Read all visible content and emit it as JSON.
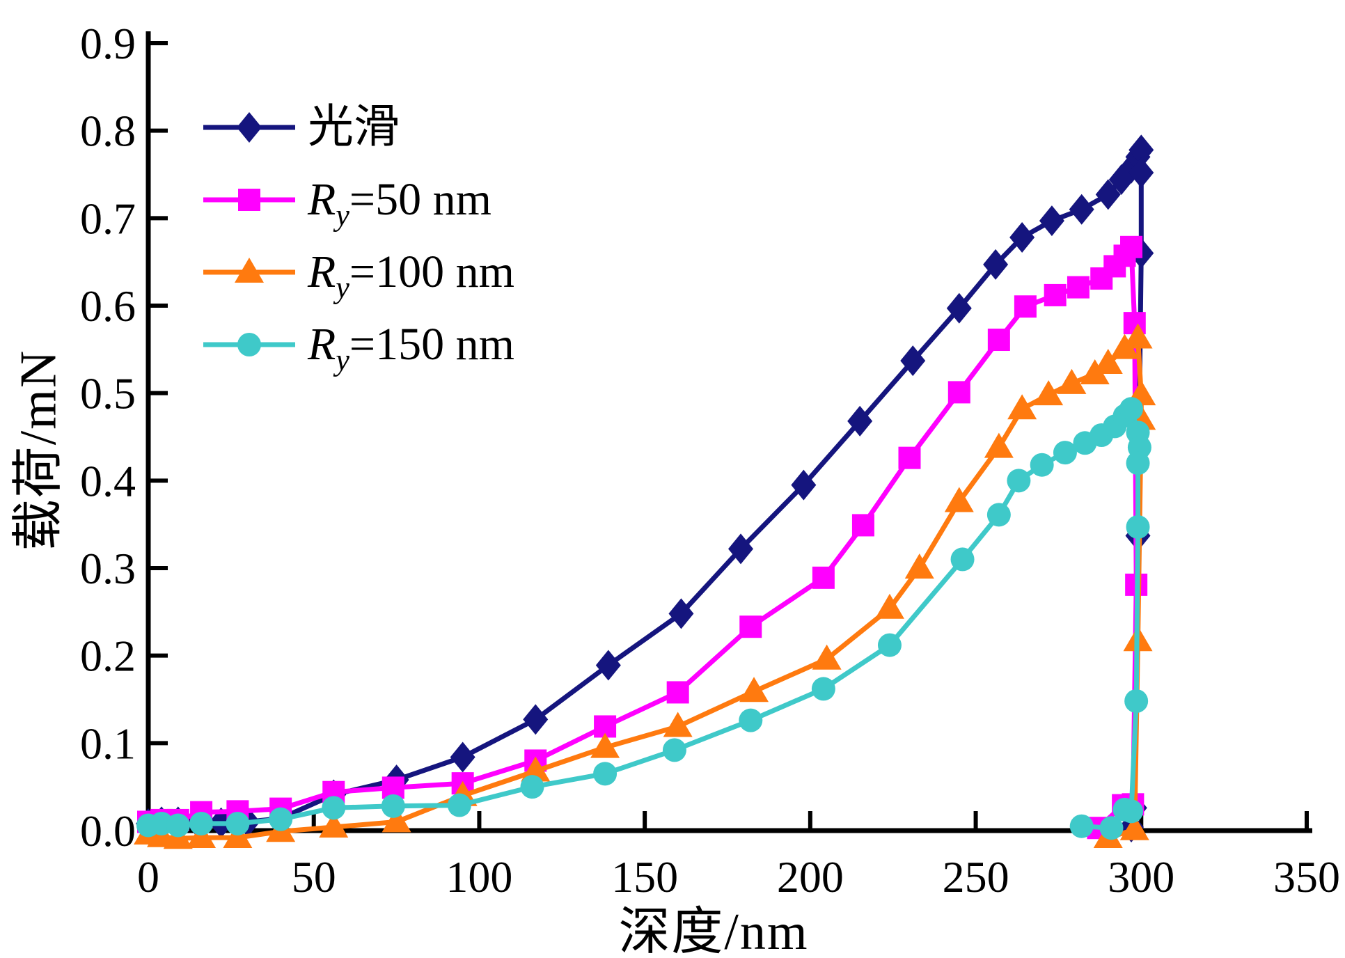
{
  "chart_data": {
    "type": "line",
    "title": "",
    "xlabel": "深度/nm",
    "ylabel": "载荷/mN",
    "xlim": [
      0,
      350
    ],
    "ylim": [
      0,
      0.9
    ],
    "xticks": [
      0,
      50,
      100,
      150,
      200,
      250,
      300,
      350
    ],
    "yticks": [
      0.0,
      0.1,
      0.2,
      0.3,
      0.4,
      0.5,
      0.6,
      0.7,
      0.8,
      0.9
    ],
    "grid": false,
    "legend_position": "upper-left",
    "axis_color": "#000000",
    "background": "#ffffff",
    "series": [
      {
        "name": "光滑",
        "label_pre": "光滑",
        "label_sub": "",
        "label_post": "",
        "label_pre_italic": false,
        "color": "#15157E",
        "marker": "diamond",
        "points": [
          [
            0,
            0.008
          ],
          [
            4,
            0.01
          ],
          [
            9,
            0.01
          ],
          [
            15,
            0.009
          ],
          [
            22,
            0.009
          ],
          [
            30,
            0.01
          ],
          [
            40,
            0.014
          ],
          [
            56,
            0.041
          ],
          [
            75,
            0.058
          ],
          [
            95,
            0.084
          ],
          [
            117,
            0.127
          ],
          [
            139,
            0.189
          ],
          [
            161,
            0.248
          ],
          [
            179,
            0.322
          ],
          [
            198,
            0.395
          ],
          [
            215,
            0.468
          ],
          [
            231,
            0.537
          ],
          [
            245,
            0.597
          ],
          [
            256,
            0.647
          ],
          [
            264,
            0.678
          ],
          [
            273,
            0.697
          ],
          [
            282,
            0.71
          ],
          [
            290,
            0.727
          ],
          [
            294,
            0.744
          ],
          [
            297,
            0.757
          ],
          [
            299,
            0.77
          ],
          [
            300,
            0.778
          ],
          [
            300,
            0.752
          ],
          [
            300,
            0.66
          ],
          [
            299,
            0.337
          ],
          [
            298,
            0.026
          ],
          [
            297,
            0.004
          ]
        ]
      },
      {
        "name": "Ry=50 nm",
        "label_pre": "R",
        "label_sub": "y",
        "label_post": "=50 nm",
        "label_pre_italic": true,
        "color": "#FF00FF",
        "marker": "square",
        "points": [
          [
            0,
            0.01
          ],
          [
            4,
            0.012
          ],
          [
            9,
            0.012
          ],
          [
            16,
            0.021
          ],
          [
            27,
            0.022
          ],
          [
            40,
            0.025
          ],
          [
            56,
            0.044
          ],
          [
            74,
            0.049
          ],
          [
            95,
            0.054
          ],
          [
            117,
            0.08
          ],
          [
            138,
            0.119
          ],
          [
            160,
            0.158
          ],
          [
            182,
            0.233
          ],
          [
            204,
            0.289
          ],
          [
            216,
            0.349
          ],
          [
            230,
            0.426
          ],
          [
            245,
            0.501
          ],
          [
            257,
            0.561
          ],
          [
            265,
            0.599
          ],
          [
            274,
            0.612
          ],
          [
            281,
            0.621
          ],
          [
            288,
            0.631
          ],
          [
            292,
            0.645
          ],
          [
            295,
            0.657
          ],
          [
            297,
            0.667
          ],
          [
            298,
            0.58
          ],
          [
            298.5,
            0.281
          ],
          [
            297.5,
            0.03
          ],
          [
            294.5,
            0.029
          ],
          [
            287,
            0.003
          ]
        ]
      },
      {
        "name": "Ry=100 nm",
        "label_pre": "R",
        "label_sub": "y",
        "label_post": "=100 nm",
        "label_pre_italic": true,
        "color": "#FF7A0F",
        "marker": "triangle",
        "points": [
          [
            0,
            -0.004
          ],
          [
            4,
            -0.007
          ],
          [
            9,
            -0.009
          ],
          [
            16,
            -0.008
          ],
          [
            27,
            -0.008
          ],
          [
            40,
            -0.001
          ],
          [
            56,
            0.004
          ],
          [
            75,
            0.01
          ],
          [
            95,
            0.04
          ],
          [
            117,
            0.068
          ],
          [
            138,
            0.095
          ],
          [
            160,
            0.119
          ],
          [
            183,
            0.159
          ],
          [
            205,
            0.196
          ],
          [
            224,
            0.254
          ],
          [
            233,
            0.3
          ],
          [
            245,
            0.376
          ],
          [
            257,
            0.438
          ],
          [
            264,
            0.482
          ],
          [
            272,
            0.498
          ],
          [
            279,
            0.511
          ],
          [
            286,
            0.522
          ],
          [
            290,
            0.534
          ],
          [
            295,
            0.551
          ],
          [
            299,
            0.563
          ],
          [
            300,
            0.498
          ],
          [
            300,
            0.47
          ],
          [
            299,
            0.217
          ],
          [
            298,
            0.001
          ],
          [
            290,
            -0.008
          ]
        ]
      },
      {
        "name": "Ry=150 nm",
        "label_pre": "R",
        "label_sub": "y",
        "label_post": "=150 nm",
        "label_pre_italic": true,
        "color": "#3FC9C9",
        "marker": "circle",
        "points": [
          [
            0,
            0.006
          ],
          [
            4,
            0.008
          ],
          [
            9,
            0.006
          ],
          [
            16,
            0.008
          ],
          [
            27,
            0.008
          ],
          [
            40,
            0.013
          ],
          [
            56,
            0.026
          ],
          [
            74,
            0.028
          ],
          [
            94,
            0.029
          ],
          [
            116,
            0.05
          ],
          [
            138,
            0.065
          ],
          [
            159,
            0.092
          ],
          [
            182,
            0.126
          ],
          [
            204,
            0.162
          ],
          [
            224,
            0.212
          ],
          [
            246,
            0.31
          ],
          [
            257,
            0.361
          ],
          [
            263,
            0.4
          ],
          [
            270,
            0.418
          ],
          [
            277,
            0.432
          ],
          [
            283,
            0.443
          ],
          [
            288,
            0.452
          ],
          [
            292,
            0.462
          ],
          [
            295,
            0.474
          ],
          [
            297,
            0.482
          ],
          [
            299,
            0.455
          ],
          [
            299.5,
            0.438
          ],
          [
            299,
            0.42
          ],
          [
            299,
            0.347
          ],
          [
            298.5,
            0.148
          ],
          [
            297,
            0.022
          ],
          [
            295,
            0.024
          ],
          [
            291,
            0.003
          ],
          [
            282,
            0.005
          ]
        ]
      }
    ]
  }
}
